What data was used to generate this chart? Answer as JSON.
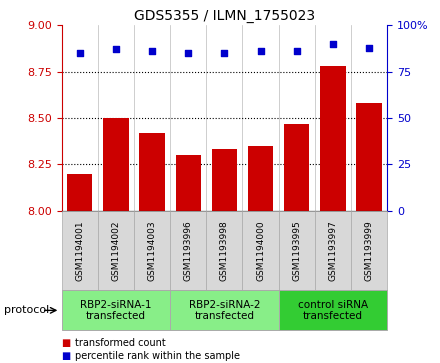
{
  "title": "GDS5355 / ILMN_1755023",
  "samples": [
    "GSM1194001",
    "GSM1194002",
    "GSM1194003",
    "GSM1193996",
    "GSM1193998",
    "GSM1194000",
    "GSM1193995",
    "GSM1193997",
    "GSM1193999"
  ],
  "bar_values": [
    8.2,
    8.5,
    8.42,
    8.3,
    8.33,
    8.35,
    8.47,
    8.78,
    8.58
  ],
  "dot_values": [
    85,
    87,
    86,
    85,
    85,
    86,
    86,
    90,
    88
  ],
  "ylim_left": [
    8.0,
    9.0
  ],
  "ylim_right": [
    0,
    100
  ],
  "yticks_left": [
    8.0,
    8.25,
    8.5,
    8.75,
    9.0
  ],
  "yticks_right": [
    0,
    25,
    50,
    75,
    100
  ],
  "bar_color": "#cc0000",
  "dot_color": "#0000cc",
  "groups": [
    {
      "label": "RBP2-siRNA-1\ntransfected",
      "indices": [
        0,
        1,
        2
      ],
      "color": "#88ee88"
    },
    {
      "label": "RBP2-siRNA-2\ntransfected",
      "indices": [
        3,
        4,
        5
      ],
      "color": "#88ee88"
    },
    {
      "label": "control siRNA\ntransfected",
      "indices": [
        6,
        7,
        8
      ],
      "color": "#33cc33"
    }
  ],
  "sample_box_color": "#d8d8d8",
  "protocol_label": "protocol",
  "legend_items": [
    {
      "label": "transformed count",
      "color": "#cc0000"
    },
    {
      "label": "percentile rank within the sample",
      "color": "#0000cc"
    }
  ],
  "tick_label_fontsize": 6.5,
  "title_fontsize": 10,
  "ylabel_fontsize": 8,
  "group_label_fontsize": 7.5
}
